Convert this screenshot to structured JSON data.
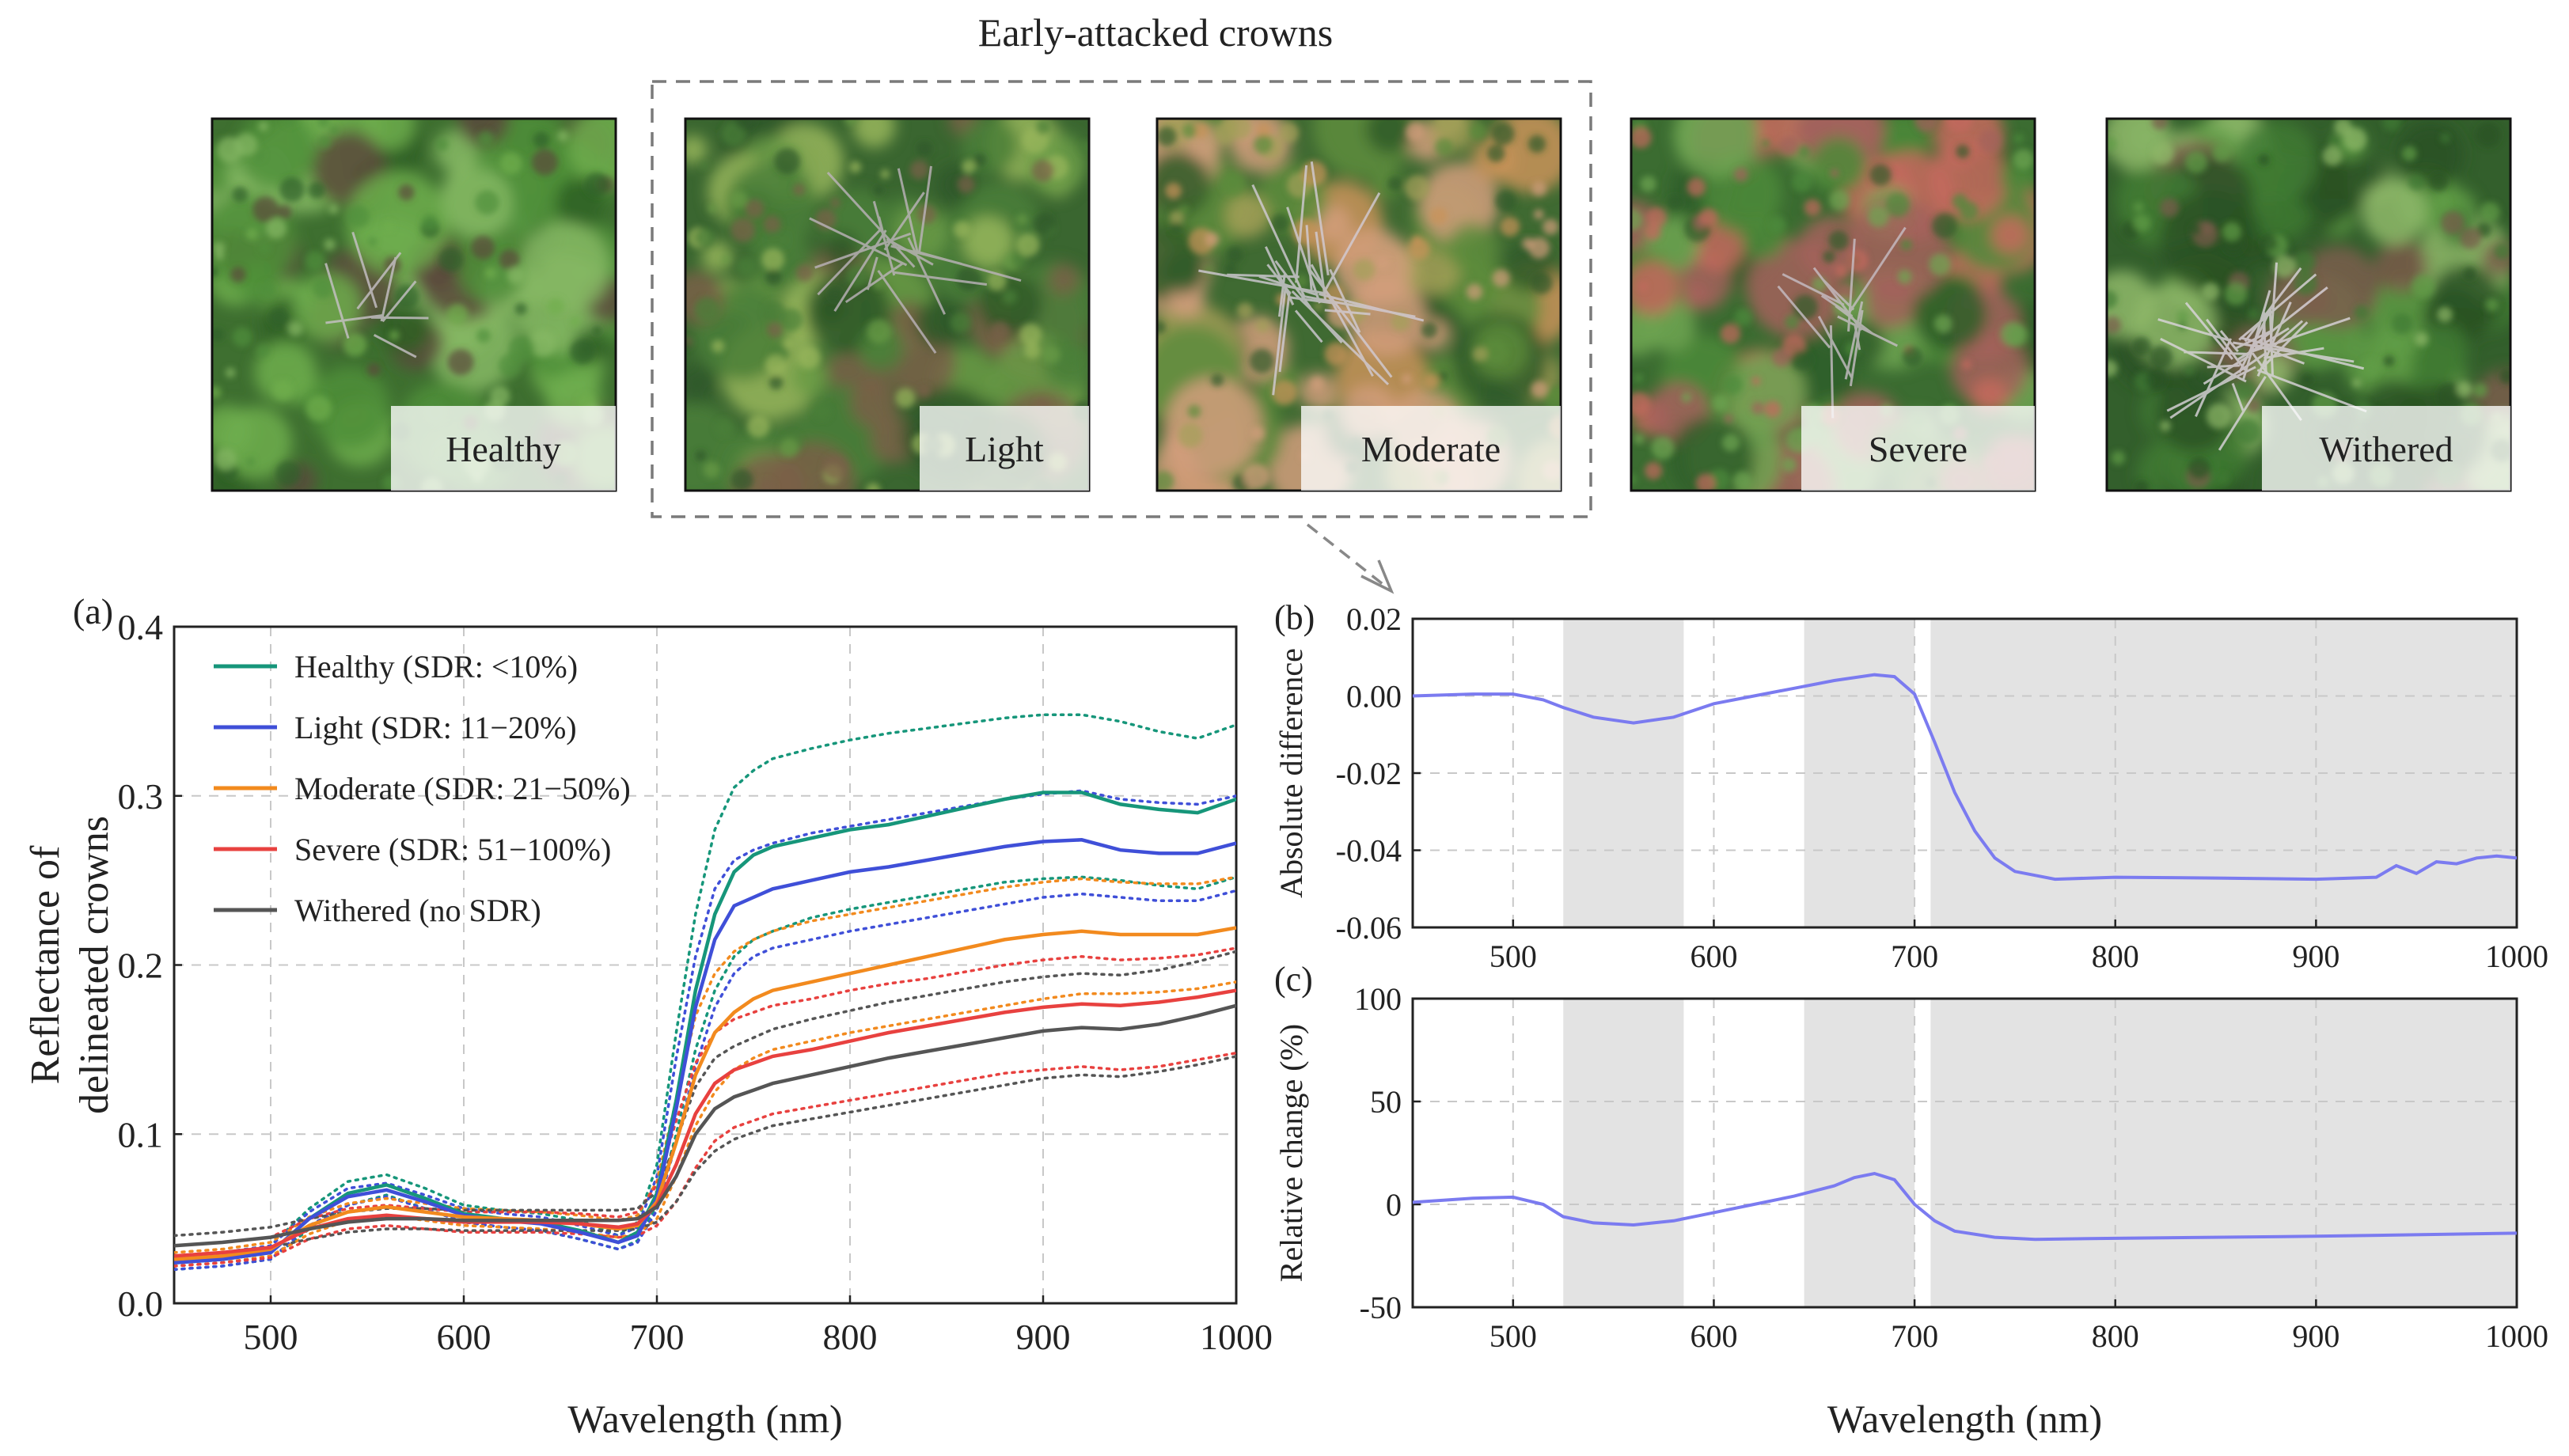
{
  "header": {
    "group_title": "Early-attacked crowns"
  },
  "photos": [
    {
      "label": "Healthy",
      "palette": [
        "#4f8f3a",
        "#6fae4d",
        "#2f5f26",
        "#86b864",
        "#5b4a3c"
      ],
      "base": "#3e6f30",
      "branch_color": "#c9c2c8",
      "twigs": 8
    },
    {
      "label": "Light",
      "palette": [
        "#4a7f38",
        "#6a9b46",
        "#2e5728",
        "#98b65c",
        "#7a6048"
      ],
      "base": "#3a6630",
      "branch_color": "#bdb4bc",
      "twigs": 18
    },
    {
      "label": "Moderate",
      "palette": [
        "#5d8c3c",
        "#c9935a",
        "#2f5a28",
        "#a4a058",
        "#d29e7c"
      ],
      "base": "#3f6a32",
      "branch_color": "#d3ccd6",
      "twigs": 26
    },
    {
      "label": "Severe",
      "palette": [
        "#4d8a3a",
        "#c56a5e",
        "#2f5d29",
        "#a3625c",
        "#6ea552"
      ],
      "base": "#3b6c31",
      "branch_color": "#c7bfc6",
      "twigs": 14
    },
    {
      "label": "Withered",
      "palette": [
        "#3f7a33",
        "#5f9c47",
        "#2a5224",
        "#7b5d4c",
        "#8fb86a"
      ],
      "base": "#335f2c",
      "branch_color": "#ddd6de",
      "twigs": 34
    }
  ],
  "chart_data": [
    {
      "id": "a",
      "panel_label": "(a)",
      "type": "line",
      "xlabel": "Wavelength (nm)",
      "ylabel": [
        "Reflectance of",
        "delineated crowns"
      ],
      "xlim": [
        450,
        1000
      ],
      "ylim": [
        0.0,
        0.4
      ],
      "xticks": [
        500,
        600,
        700,
        800,
        900,
        1000
      ],
      "yticks": [
        0.0,
        0.1,
        0.2,
        0.3,
        0.4
      ],
      "ytick_labels": [
        "0.0",
        "0.1",
        "0.2",
        "0.3",
        "0.4"
      ],
      "grid": true,
      "legend": "top-left",
      "note": "dotted lines show the mean plus or minus one standard deviation for each class (legend does not label them)",
      "x": [
        450,
        475,
        500,
        520,
        540,
        560,
        580,
        600,
        620,
        640,
        660,
        680,
        690,
        700,
        710,
        720,
        730,
        740,
        750,
        760,
        780,
        800,
        820,
        840,
        860,
        880,
        900,
        920,
        940,
        960,
        980,
        1000
      ],
      "series": [
        {
          "name": "Healthy (SDR: <10%)",
          "color": "#16967a",
          "values": [
            0.024,
            0.026,
            0.03,
            0.05,
            0.065,
            0.07,
            0.062,
            0.053,
            0.05,
            0.048,
            0.043,
            0.036,
            0.042,
            0.065,
            0.12,
            0.185,
            0.23,
            0.255,
            0.265,
            0.27,
            0.275,
            0.28,
            0.283,
            0.288,
            0.293,
            0.298,
            0.302,
            0.302,
            0.295,
            0.292,
            0.29,
            0.298
          ],
          "upper": [
            0.028,
            0.03,
            0.034,
            0.056,
            0.072,
            0.076,
            0.068,
            0.058,
            0.055,
            0.053,
            0.049,
            0.04,
            0.048,
            0.082,
            0.16,
            0.23,
            0.28,
            0.305,
            0.315,
            0.322,
            0.328,
            0.333,
            0.337,
            0.34,
            0.343,
            0.346,
            0.348,
            0.348,
            0.344,
            0.338,
            0.334,
            0.342
          ],
          "lower": [
            0.02,
            0.022,
            0.026,
            0.044,
            0.058,
            0.064,
            0.056,
            0.048,
            0.045,
            0.043,
            0.038,
            0.032,
            0.037,
            0.058,
            0.1,
            0.15,
            0.185,
            0.205,
            0.215,
            0.22,
            0.228,
            0.233,
            0.237,
            0.241,
            0.245,
            0.249,
            0.251,
            0.252,
            0.25,
            0.247,
            0.245,
            0.252
          ]
        },
        {
          "name": "Light (SDR: 11−20%)",
          "color": "#3f4fd8",
          "values": [
            0.024,
            0.026,
            0.03,
            0.05,
            0.063,
            0.067,
            0.06,
            0.052,
            0.049,
            0.047,
            0.042,
            0.036,
            0.04,
            0.062,
            0.115,
            0.175,
            0.215,
            0.235,
            0.24,
            0.245,
            0.25,
            0.255,
            0.258,
            0.262,
            0.266,
            0.27,
            0.273,
            0.274,
            0.268,
            0.266,
            0.266,
            0.272
          ],
          "upper": [
            0.028,
            0.03,
            0.034,
            0.054,
            0.068,
            0.071,
            0.064,
            0.056,
            0.053,
            0.051,
            0.046,
            0.04,
            0.045,
            0.075,
            0.145,
            0.205,
            0.245,
            0.262,
            0.268,
            0.272,
            0.278,
            0.282,
            0.286,
            0.29,
            0.294,
            0.298,
            0.301,
            0.303,
            0.298,
            0.296,
            0.295,
            0.3
          ],
          "lower": [
            0.02,
            0.022,
            0.026,
            0.046,
            0.058,
            0.063,
            0.056,
            0.048,
            0.045,
            0.043,
            0.038,
            0.032,
            0.036,
            0.055,
            0.095,
            0.14,
            0.175,
            0.195,
            0.205,
            0.21,
            0.215,
            0.22,
            0.224,
            0.228,
            0.232,
            0.236,
            0.24,
            0.242,
            0.24,
            0.238,
            0.238,
            0.244
          ]
        },
        {
          "name": "Moderate (SDR: 21−50%)",
          "color": "#f28a1e",
          "values": [
            0.026,
            0.028,
            0.032,
            0.046,
            0.054,
            0.057,
            0.054,
            0.051,
            0.05,
            0.049,
            0.047,
            0.044,
            0.046,
            0.06,
            0.095,
            0.135,
            0.16,
            0.172,
            0.18,
            0.185,
            0.19,
            0.195,
            0.2,
            0.205,
            0.21,
            0.215,
            0.218,
            0.22,
            0.218,
            0.218,
            0.218,
            0.222
          ],
          "upper": [
            0.03,
            0.032,
            0.036,
            0.051,
            0.059,
            0.062,
            0.059,
            0.056,
            0.055,
            0.054,
            0.052,
            0.049,
            0.052,
            0.072,
            0.12,
            0.17,
            0.195,
            0.208,
            0.215,
            0.22,
            0.226,
            0.23,
            0.234,
            0.238,
            0.242,
            0.246,
            0.249,
            0.251,
            0.249,
            0.248,
            0.248,
            0.252
          ],
          "lower": [
            0.022,
            0.024,
            0.028,
            0.041,
            0.049,
            0.052,
            0.049,
            0.046,
            0.045,
            0.044,
            0.042,
            0.039,
            0.041,
            0.05,
            0.075,
            0.105,
            0.125,
            0.138,
            0.145,
            0.15,
            0.155,
            0.16,
            0.164,
            0.168,
            0.172,
            0.176,
            0.18,
            0.183,
            0.183,
            0.184,
            0.186,
            0.19
          ]
        },
        {
          "name": "Severe (SDR: 51−100%)",
          "color": "#e8413f",
          "values": [
            0.028,
            0.03,
            0.033,
            0.044,
            0.05,
            0.052,
            0.05,
            0.048,
            0.048,
            0.048,
            0.047,
            0.045,
            0.047,
            0.058,
            0.082,
            0.112,
            0.13,
            0.138,
            0.142,
            0.146,
            0.15,
            0.155,
            0.16,
            0.164,
            0.168,
            0.172,
            0.175,
            0.177,
            0.176,
            0.178,
            0.181,
            0.185
          ],
          "upper": [
            0.034,
            0.036,
            0.039,
            0.05,
            0.056,
            0.058,
            0.056,
            0.054,
            0.054,
            0.054,
            0.053,
            0.051,
            0.054,
            0.07,
            0.108,
            0.142,
            0.16,
            0.168,
            0.172,
            0.176,
            0.18,
            0.185,
            0.189,
            0.192,
            0.196,
            0.2,
            0.203,
            0.205,
            0.203,
            0.204,
            0.206,
            0.21
          ],
          "lower": [
            0.022,
            0.024,
            0.027,
            0.038,
            0.044,
            0.046,
            0.044,
            0.042,
            0.042,
            0.042,
            0.041,
            0.039,
            0.04,
            0.046,
            0.06,
            0.08,
            0.096,
            0.104,
            0.108,
            0.112,
            0.116,
            0.12,
            0.124,
            0.128,
            0.132,
            0.136,
            0.138,
            0.14,
            0.138,
            0.14,
            0.144,
            0.148
          ]
        },
        {
          "name": "Withered (no SDR)",
          "color": "#555555",
          "values": [
            0.034,
            0.036,
            0.039,
            0.044,
            0.048,
            0.05,
            0.05,
            0.049,
            0.049,
            0.049,
            0.049,
            0.049,
            0.05,
            0.057,
            0.075,
            0.1,
            0.115,
            0.122,
            0.126,
            0.13,
            0.135,
            0.14,
            0.145,
            0.149,
            0.153,
            0.157,
            0.161,
            0.163,
            0.162,
            0.165,
            0.17,
            0.176
          ],
          "upper": [
            0.04,
            0.042,
            0.045,
            0.05,
            0.054,
            0.056,
            0.056,
            0.055,
            0.055,
            0.055,
            0.055,
            0.055,
            0.056,
            0.066,
            0.096,
            0.128,
            0.145,
            0.152,
            0.157,
            0.162,
            0.168,
            0.173,
            0.178,
            0.182,
            0.186,
            0.19,
            0.193,
            0.195,
            0.194,
            0.197,
            0.202,
            0.208
          ],
          "lower": [
            0.028,
            0.03,
            0.033,
            0.038,
            0.042,
            0.044,
            0.044,
            0.043,
            0.043,
            0.043,
            0.043,
            0.043,
            0.044,
            0.048,
            0.06,
            0.078,
            0.09,
            0.097,
            0.101,
            0.105,
            0.109,
            0.113,
            0.117,
            0.121,
            0.125,
            0.129,
            0.133,
            0.135,
            0.134,
            0.137,
            0.141,
            0.146
          ]
        }
      ]
    },
    {
      "id": "b",
      "panel_label": "(b)",
      "type": "line",
      "ylabel": "Absolute difference",
      "xlim": [
        450,
        1000
      ],
      "ylim": [
        -0.06,
        0.02
      ],
      "xticks": [
        500,
        600,
        700,
        800,
        900,
        1000
      ],
      "yticks": [
        -0.06,
        -0.04,
        -0.02,
        0.0,
        0.02
      ],
      "ytick_labels": [
        "-0.06",
        "-0.04",
        "-0.02",
        "0.00",
        "0.02"
      ],
      "grid": true,
      "shaded_bands": [
        [
          525,
          585
        ],
        [
          645,
          700
        ],
        [
          708,
          1000
        ]
      ],
      "color": "#7b7bf0",
      "x": [
        450,
        480,
        500,
        515,
        525,
        540,
        560,
        580,
        600,
        620,
        640,
        660,
        680,
        690,
        700,
        710,
        720,
        730,
        740,
        750,
        760,
        770,
        800,
        850,
        900,
        930,
        940,
        950,
        960,
        970,
        980,
        990,
        1000
      ],
      "values": [
        0.0,
        0.0005,
        0.0005,
        -0.001,
        -0.003,
        -0.0055,
        -0.007,
        -0.0055,
        -0.002,
        0.0,
        0.002,
        0.004,
        0.0055,
        0.005,
        0.0005,
        -0.012,
        -0.025,
        -0.035,
        -0.042,
        -0.0455,
        -0.0465,
        -0.0475,
        -0.047,
        -0.0472,
        -0.0475,
        -0.047,
        -0.044,
        -0.046,
        -0.043,
        -0.0435,
        -0.042,
        -0.0415,
        -0.042
      ]
    },
    {
      "id": "c",
      "panel_label": "(c)",
      "type": "line",
      "xlabel": "Wavelength (nm)",
      "ylabel": "Relative change (%)",
      "xlim": [
        450,
        1000
      ],
      "ylim": [
        -50,
        100
      ],
      "xticks": [
        500,
        600,
        700,
        800,
        900,
        1000
      ],
      "yticks": [
        -50,
        0,
        50,
        100
      ],
      "ytick_labels": [
        "-50",
        "0",
        "50",
        "100"
      ],
      "grid": true,
      "shaded_bands": [
        [
          525,
          585
        ],
        [
          645,
          700
        ],
        [
          708,
          1000
        ]
      ],
      "color": "#7b7bf0",
      "x": [
        450,
        480,
        500,
        515,
        525,
        540,
        560,
        580,
        600,
        620,
        640,
        660,
        670,
        680,
        690,
        700,
        710,
        720,
        740,
        760,
        800,
        900,
        1000
      ],
      "values": [
        1,
        3,
        3.5,
        0,
        -6,
        -9,
        -10,
        -8,
        -4,
        0,
        4,
        9,
        13,
        15,
        12,
        0,
        -8,
        -13,
        -16,
        -17,
        -16.5,
        -15.5,
        -14
      ]
    }
  ]
}
